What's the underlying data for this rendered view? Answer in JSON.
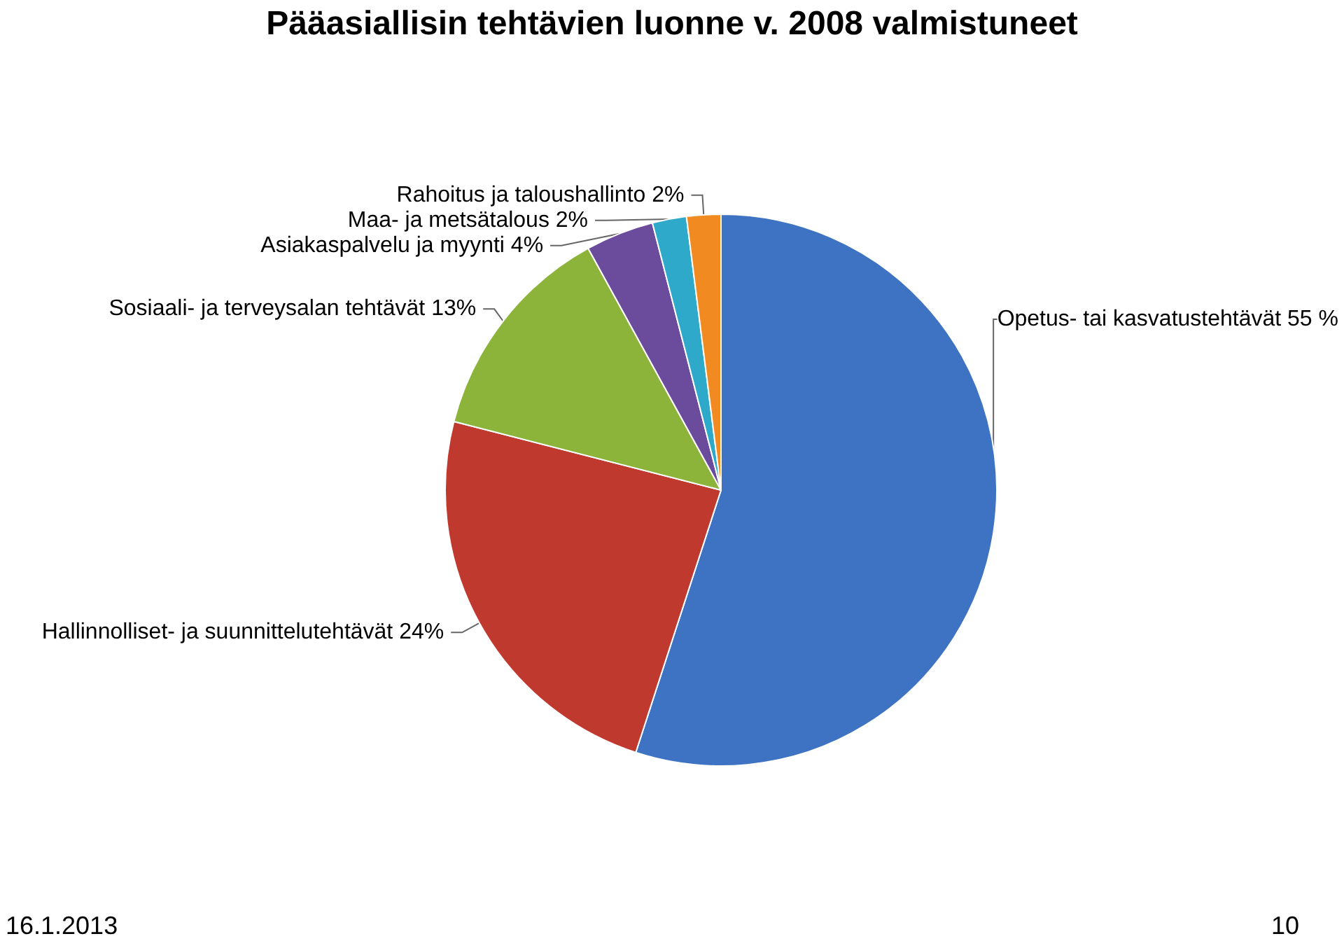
{
  "chart_data": {
    "type": "pie",
    "title": "Pääasiallisin tehtävien luonne v. 2008 valmistuneet",
    "categories": [
      "Opetus- tai kasvatustehtävät",
      "Hallinnolliset- ja suunnittelutehtävät",
      "Sosiaali- ja terveysalan tehtävät",
      "Asiakaspalvelu ja myynti",
      "Maa- ja metsätalous",
      "Rahoitus ja taloushallinto"
    ],
    "values": [
      55,
      24,
      13,
      4,
      2,
      2
    ],
    "value_labels": [
      "55 %",
      "24%",
      "13%",
      "4%",
      "2%",
      "2%"
    ],
    "colors": [
      "#3d73c2",
      "#c0392f",
      "#8cb43a",
      "#6b4b9c",
      "#2ea9c9",
      "#f28a22"
    ],
    "annotations": [
      "16.1.2013",
      "10"
    ],
    "legend": false
  }
}
